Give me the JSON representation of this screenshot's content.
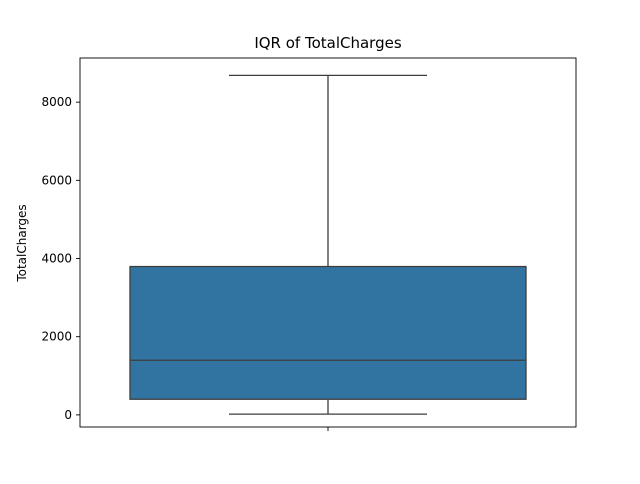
{
  "chart_data": {
    "type": "box",
    "title": "IQR of TotalCharges",
    "xlabel": "",
    "ylabel": "TotalCharges",
    "ylim": [
      -310,
      9130
    ],
    "yticks": [
      0,
      2000,
      4000,
      6000,
      8000
    ],
    "xticks": [
      ""
    ],
    "grid": false,
    "legend": "none",
    "series": [
      {
        "stats": {
          "min": 19,
          "q1": 400,
          "median": 1397,
          "q3": 3795,
          "max": 8685
        }
      }
    ],
    "colors": {
      "box_fill": "#3274a1",
      "line": "#3d3d3d",
      "axes": "#000000"
    }
  }
}
